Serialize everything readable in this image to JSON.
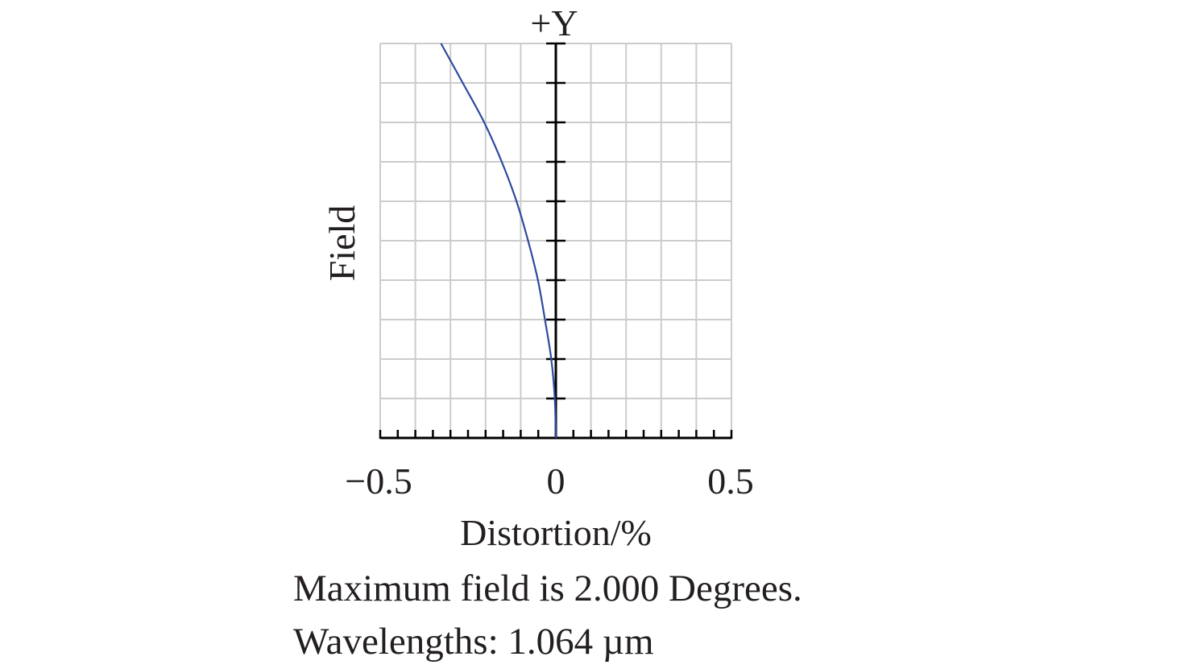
{
  "chart_data": {
    "type": "line",
    "title": "+Y",
    "xlabel": "Distortion/%",
    "ylabel": "Field",
    "xlim": [
      -0.5,
      0.5
    ],
    "ylim": [
      0,
      1
    ],
    "grid": true,
    "xticks": [
      -0.5,
      0,
      0.5
    ],
    "xtick_labels": [
      "−0.5",
      "0",
      "0.5"
    ],
    "series": [
      {
        "name": "1.064 µm",
        "color": "#2e4a9e",
        "field": [
          0,
          0.1,
          0.2,
          0.3,
          0.4,
          0.5,
          0.6,
          0.7,
          0.8,
          0.9,
          1.0
        ],
        "distortion": [
          0,
          -0.003,
          -0.013,
          -0.031,
          -0.051,
          -0.079,
          -0.112,
          -0.154,
          -0.204,
          -0.265,
          -0.327
        ]
      }
    ],
    "notes": [
      "Maximum field is 2.000 Degrees.",
      "Wavelengths: 1.064 µm"
    ]
  }
}
